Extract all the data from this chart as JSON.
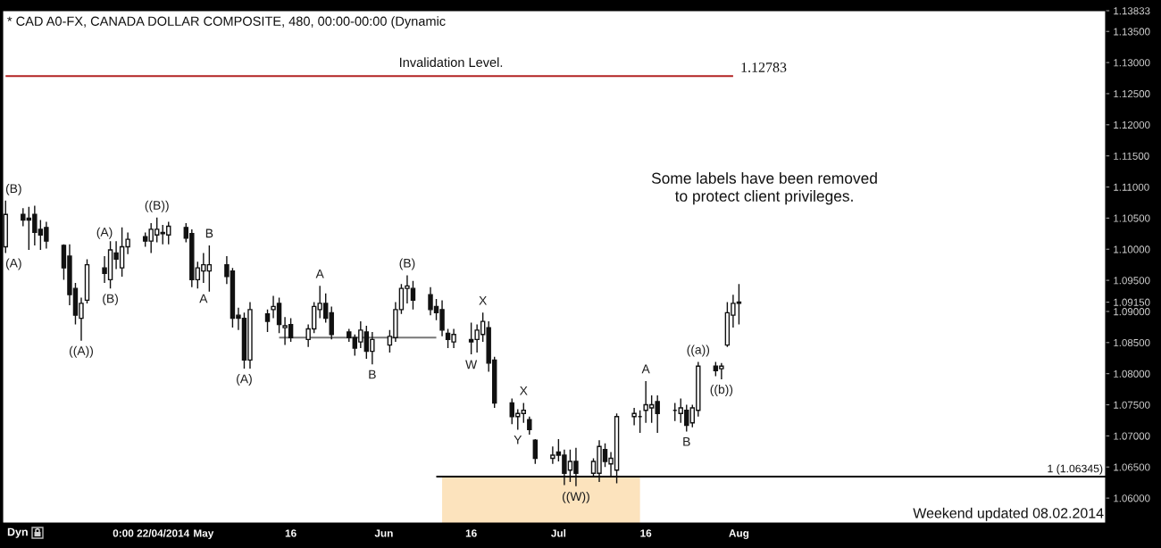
{
  "chart_data": {
    "type": "candlestick",
    "title": "* CAD A0-FX, CANADA DOLLAR COMPOSITE, 480, 00:00-00:00 (Dynamic",
    "color": "#111111",
    "x": [
      "2014-03-28",
      "2014-03-31",
      "2014-04-01",
      "2014-04-02",
      "2014-04-03",
      "2014-04-04",
      "2014-04-07",
      "2014-04-08",
      "2014-04-09",
      "2014-04-10",
      "2014-04-11",
      "2014-04-14",
      "2014-04-15",
      "2014-04-16",
      "2014-04-17",
      "2014-04-18",
      "2014-04-21",
      "2014-04-22",
      "2014-04-23",
      "2014-04-24",
      "2014-04-25",
      "2014-04-28",
      "2014-04-29",
      "2014-04-30",
      "2014-05-01",
      "2014-05-02",
      "2014-05-05",
      "2014-05-06",
      "2014-05-07",
      "2014-05-08",
      "2014-05-09",
      "2014-05-12",
      "2014-05-13",
      "2014-05-14",
      "2014-05-15",
      "2014-05-16",
      "2014-05-19",
      "2014-05-20",
      "2014-05-21",
      "2014-05-22",
      "2014-05-23",
      "2014-05-26",
      "2014-05-27",
      "2014-05-28",
      "2014-05-29",
      "2014-05-30",
      "2014-06-02",
      "2014-06-03",
      "2014-06-04",
      "2014-06-05",
      "2014-06-06",
      "2014-06-09",
      "2014-06-10",
      "2014-06-11",
      "2014-06-12",
      "2014-06-13",
      "2014-06-16",
      "2014-06-17",
      "2014-06-18",
      "2014-06-19",
      "2014-06-20",
      "2014-06-23",
      "2014-06-24",
      "2014-06-25",
      "2014-06-26",
      "2014-06-27",
      "2014-06-30",
      "2014-07-01",
      "2014-07-02",
      "2014-07-03",
      "2014-07-04",
      "2014-07-07",
      "2014-07-08",
      "2014-07-09",
      "2014-07-10",
      "2014-07-11",
      "2014-07-14",
      "2014-07-15",
      "2014-07-16",
      "2014-07-17",
      "2014-07-18",
      "2014-07-21",
      "2014-07-22",
      "2014-07-23",
      "2014-07-24",
      "2014-07-25",
      "2014-07-28",
      "2014-07-29",
      "2014-07-30",
      "2014-07-31",
      "2014-08-01"
    ],
    "ohlc": [
      [
        1.1004,
        1.1078,
        1.0994,
        1.1056
      ],
      [
        1.1056,
        1.1066,
        1.1037,
        1.1047
      ],
      [
        1.105,
        1.1068,
        1.0999,
        1.1047
      ],
      [
        1.1056,
        1.107,
        1.1006,
        1.1027
      ],
      [
        1.1032,
        1.1047,
        1.0999,
        1.1023
      ],
      [
        1.1035,
        1.1044,
        1.1001,
        1.1013
      ],
      [
        1.1006,
        1.1008,
        1.0951,
        1.097
      ],
      [
        1.0989,
        1.1008,
        1.091,
        1.0927
      ],
      [
        1.0937,
        1.0946,
        1.0879,
        1.0894
      ],
      [
        1.0889,
        1.0922,
        1.0853,
        1.0913
      ],
      [
        1.0918,
        1.0984,
        1.0913,
        1.0975
      ],
      [
        1.097,
        1.0989,
        1.0946,
        1.0961
      ],
      [
        1.0951,
        1.1013,
        1.0937,
        1.0999
      ],
      [
        1.0994,
        1.1013,
        1.0968,
        1.0984
      ],
      [
        1.097,
        1.1035,
        1.0956,
        1.1004
      ],
      [
        1.1004,
        1.1027,
        1.0992,
        1.1016
      ],
      [
        1.102,
        1.1027,
        1.1004,
        1.1013
      ],
      [
        1.1013,
        1.1042,
        1.0994,
        1.1032
      ],
      [
        1.1023,
        1.1051,
        1.1011,
        1.1032
      ],
      [
        1.1027,
        1.1039,
        1.1008,
        1.1025
      ],
      [
        1.1023,
        1.1044,
        1.1008,
        1.1037
      ],
      [
        1.1035,
        1.1042,
        1.1011,
        1.1018
      ],
      [
        1.1025,
        1.1032,
        1.0939,
        1.0951
      ],
      [
        1.0951,
        1.098,
        1.0937,
        1.097
      ],
      [
        1.0965,
        1.0994,
        1.0946,
        1.0975
      ],
      [
        1.0965,
        1.1006,
        1.0932,
        1.0975
      ],
      [
        1.0975,
        1.0989,
        1.0944,
        1.0956
      ],
      [
        1.0965,
        1.097,
        1.0874,
        1.0889
      ],
      [
        1.0894,
        1.0906,
        1.087,
        1.0889
      ],
      [
        1.0889,
        1.0898,
        1.0808,
        1.0822
      ],
      [
        1.0822,
        1.0915,
        1.0808,
        1.0903
      ],
      [
        1.0896,
        1.0903,
        1.0867,
        1.0884
      ],
      [
        1.0903,
        1.0925,
        1.0889,
        1.0908
      ],
      [
        1.0913,
        1.0922,
        1.0865,
        1.0879
      ],
      [
        1.0874,
        1.0891,
        1.0846,
        1.0877
      ],
      [
        1.0879,
        1.0889,
        1.0851,
        1.0858
      ],
      [
        1.0855,
        1.0879,
        1.0843,
        1.0872
      ],
      [
        1.0872,
        1.0915,
        1.0865,
        1.0908
      ],
      [
        1.0903,
        1.0941,
        1.0889,
        1.0913
      ],
      [
        1.0913,
        1.0929,
        1.0882,
        1.0889
      ],
      [
        1.0898,
        1.0908,
        1.0855,
        1.0863
      ],
      [
        1.0867,
        1.0872,
        1.0851,
        1.0858
      ],
      [
        1.0858,
        1.0863,
        1.0829,
        1.0841
      ],
      [
        1.0851,
        1.0884,
        1.0841,
        1.087
      ],
      [
        1.0867,
        1.0877,
        1.0824,
        1.0836
      ],
      [
        1.0836,
        1.0867,
        1.0815,
        1.0855
      ],
      [
        1.0846,
        1.087,
        1.0834,
        1.086
      ],
      [
        1.0858,
        1.0915,
        1.0851,
        1.0903
      ],
      [
        1.0903,
        1.0944,
        1.0896,
        1.0937
      ],
      [
        1.0937,
        1.0958,
        1.0913,
        1.0941
      ],
      [
        1.0937,
        1.0949,
        1.0903,
        1.0918
      ],
      [
        1.0927,
        1.0939,
        1.0894,
        1.0903
      ],
      [
        1.0908,
        1.092,
        1.0886,
        1.0898
      ],
      [
        1.0903,
        1.0918,
        1.086,
        1.087
      ],
      [
        1.0865,
        1.0872,
        1.0841,
        1.0855
      ],
      [
        1.0851,
        1.0872,
        1.0841,
        1.0863
      ],
      [
        1.0855,
        1.0882,
        1.0831,
        1.0851
      ],
      [
        1.0855,
        1.0879,
        1.0834,
        1.087
      ],
      [
        1.0863,
        1.0898,
        1.0851,
        1.0884
      ],
      [
        1.0874,
        1.0884,
        1.0803,
        1.0817
      ],
      [
        1.0822,
        1.0827,
        1.0745,
        1.0753
      ],
      [
        1.0753,
        1.076,
        1.0719,
        1.0731
      ],
      [
        1.0731,
        1.0743,
        1.071,
        1.0736
      ],
      [
        1.0736,
        1.0753,
        1.0721,
        1.0741
      ],
      [
        1.0726,
        1.0731,
        1.0702,
        1.071
      ],
      [
        1.0693,
        1.0695,
        1.0655,
        1.0664
      ],
      [
        1.0664,
        1.0683,
        1.0655,
        1.0669
      ],
      [
        1.0674,
        1.0695,
        1.0659,
        1.0669
      ],
      [
        1.0669,
        1.0678,
        1.0621,
        1.064
      ],
      [
        1.0645,
        1.0678,
        1.0626,
        1.0659
      ],
      [
        1.0659,
        1.0681,
        1.0619,
        1.064
      ],
      [
        1.064,
        1.0664,
        1.0635,
        1.0659
      ],
      [
        1.064,
        1.0693,
        1.0626,
        1.0683
      ],
      [
        1.0678,
        1.0688,
        1.065,
        1.0659
      ],
      [
        1.0655,
        1.0674,
        1.0635,
        1.0664
      ],
      [
        1.0645,
        1.0736,
        1.0624,
        1.0731
      ],
      [
        1.0731,
        1.0745,
        1.0717,
        1.0736
      ],
      [
        1.0731,
        1.0741,
        1.0705,
        1.0731
      ],
      [
        1.0741,
        1.0788,
        1.0721,
        1.075
      ],
      [
        1.0745,
        1.0765,
        1.0721,
        1.075
      ],
      [
        1.0755,
        1.0765,
        1.0705,
        1.0736
      ],
      [
        1.0741,
        1.0753,
        1.0724,
        1.0741
      ],
      [
        1.0736,
        1.076,
        1.0721,
        1.0745
      ],
      [
        1.0741,
        1.075,
        1.0707,
        1.0717
      ],
      [
        1.0721,
        1.075,
        1.0714,
        1.0745
      ],
      [
        1.0741,
        1.0819,
        1.0731,
        1.0812
      ],
      [
        1.0812,
        1.0819,
        1.0796,
        1.0805
      ],
      [
        1.0808,
        1.0817,
        1.0791,
        1.0812
      ],
      [
        1.0846,
        1.0915,
        1.0843,
        1.0898
      ],
      [
        1.0894,
        1.0927,
        1.0874,
        1.0913
      ],
      [
        1.0913,
        1.0944,
        1.0879,
        1.0915
      ]
    ],
    "series": [
      {
        "type": "area",
        "x": [
          "2014-06-11",
          "2014-07-15"
        ],
        "values": [
          1.06345,
          1.06345
        ],
        "color": "#fce3bd"
      },
      {
        "type": "line",
        "x": [
          "2014-03-28",
          "2014-07-31"
        ],
        "values": [
          1.12783,
          1.12783
        ],
        "color": "#b22222"
      },
      {
        "type": "line",
        "x": [
          "2014-05-14",
          "2014-06-10"
        ],
        "values": [
          1.0858,
          1.0858
        ],
        "color": "#777777"
      },
      {
        "type": "line",
        "x": [
          "2014-06-10",
          "2014-10-03"
        ],
        "values": [
          1.06345,
          1.06345
        ],
        "color": "#000000"
      }
    ],
    "xlim": [
      "2014-03-27T12:00",
      "2014-10-03"
    ],
    "ylim": [
      1.056,
      1.13833
    ],
    "xticks": [
      {
        "value": "2014-04-22T00:00",
        "label": "0:00 22/04/2014"
      },
      {
        "value": "2014-05-01",
        "label": "May"
      },
      {
        "value": "2014-05-16",
        "label": "16"
      },
      {
        "value": "2014-06-01",
        "label": "Jun"
      },
      {
        "value": "2014-06-16",
        "label": "16"
      },
      {
        "value": "2014-07-01",
        "label": "Jul"
      },
      {
        "value": "2014-07-16",
        "label": "16"
      },
      {
        "value": "2014-08-01",
        "label": "Aug"
      }
    ],
    "yticks": [
      {
        "value": 1.06,
        "label": "1.06000"
      },
      {
        "value": 1.065,
        "label": "1.06500"
      },
      {
        "value": 1.07,
        "label": "1.07000"
      },
      {
        "value": 1.075,
        "label": "1.07500"
      },
      {
        "value": 1.08,
        "label": "1.08000"
      },
      {
        "value": 1.085,
        "label": "1.08500"
      },
      {
        "value": 1.09,
        "label": "1.09000"
      },
      {
        "value": 1.0915,
        "label": "1.09150"
      },
      {
        "value": 1.095,
        "label": "1.09500"
      },
      {
        "value": 1.1,
        "label": "1.10000"
      },
      {
        "value": 1.105,
        "label": "1.10500"
      },
      {
        "value": 1.11,
        "label": "1.11000"
      },
      {
        "value": 1.115,
        "label": "1.11500"
      },
      {
        "value": 1.12,
        "label": "1.12000"
      },
      {
        "value": 1.125,
        "label": "1.12500"
      },
      {
        "value": 1.13,
        "label": "1.13000"
      },
      {
        "value": 1.135,
        "label": "1.13500"
      },
      1.13833
    ],
    "annotations": [
      "Invalidation Level.",
      "1.12783",
      "1 (1.06345)",
      "Some labels have been removed\nto protect client privileges.",
      "Weekend updated 08.02.2014",
      "Dyn",
      {
        "text": "(B)",
        "x": "2014-03-28",
        "y": 1.1078
      },
      {
        "text": "(A)",
        "x": "2014-03-28",
        "y": 1.0994
      },
      {
        "text": "((A))",
        "x": "2014-04-10",
        "y": 1.0853
      },
      {
        "text": "(A)",
        "x": "2014-04-14",
        "y": 1.0989
      },
      {
        "text": "(B)",
        "x": "2014-04-15",
        "y": 1.0937
      },
      {
        "text": "((B))",
        "x": "2014-04-23",
        "y": 1.1051
      },
      {
        "text": "B",
        "x": "2014-05-02",
        "y": 1.1006
      },
      {
        "text": "A",
        "x": "2014-05-01",
        "y": 1.0946
      },
      {
        "text": "(A)",
        "x": "2014-05-08",
        "y": 1.0808
      },
      {
        "text": "A",
        "x": "2014-05-21",
        "y": 1.0941
      },
      {
        "text": "B",
        "x": "2014-05-30",
        "y": 1.0815
      },
      {
        "text": "(B)",
        "x": "2014-06-05",
        "y": 1.0958
      },
      {
        "text": "W",
        "x": "2014-06-16",
        "y": 1.0831
      },
      {
        "text": "X",
        "x": "2014-06-18",
        "y": 1.0898
      },
      {
        "text": "Y",
        "x": "2014-06-24",
        "y": 1.071
      },
      {
        "text": "X",
        "x": "2014-06-25",
        "y": 1.0753
      },
      {
        "text": "((W))",
        "x": "2014-07-04",
        "y": 1.0619
      },
      {
        "text": "A",
        "x": "2014-07-16",
        "y": 1.0788
      },
      {
        "text": "B",
        "x": "2014-07-23",
        "y": 1.0707
      },
      {
        "text": "((a))",
        "x": "2014-07-25",
        "y": 1.0819
      },
      {
        "text": "((b))",
        "x": "2014-07-29",
        "y": 1.0791
      }
    ]
  }
}
